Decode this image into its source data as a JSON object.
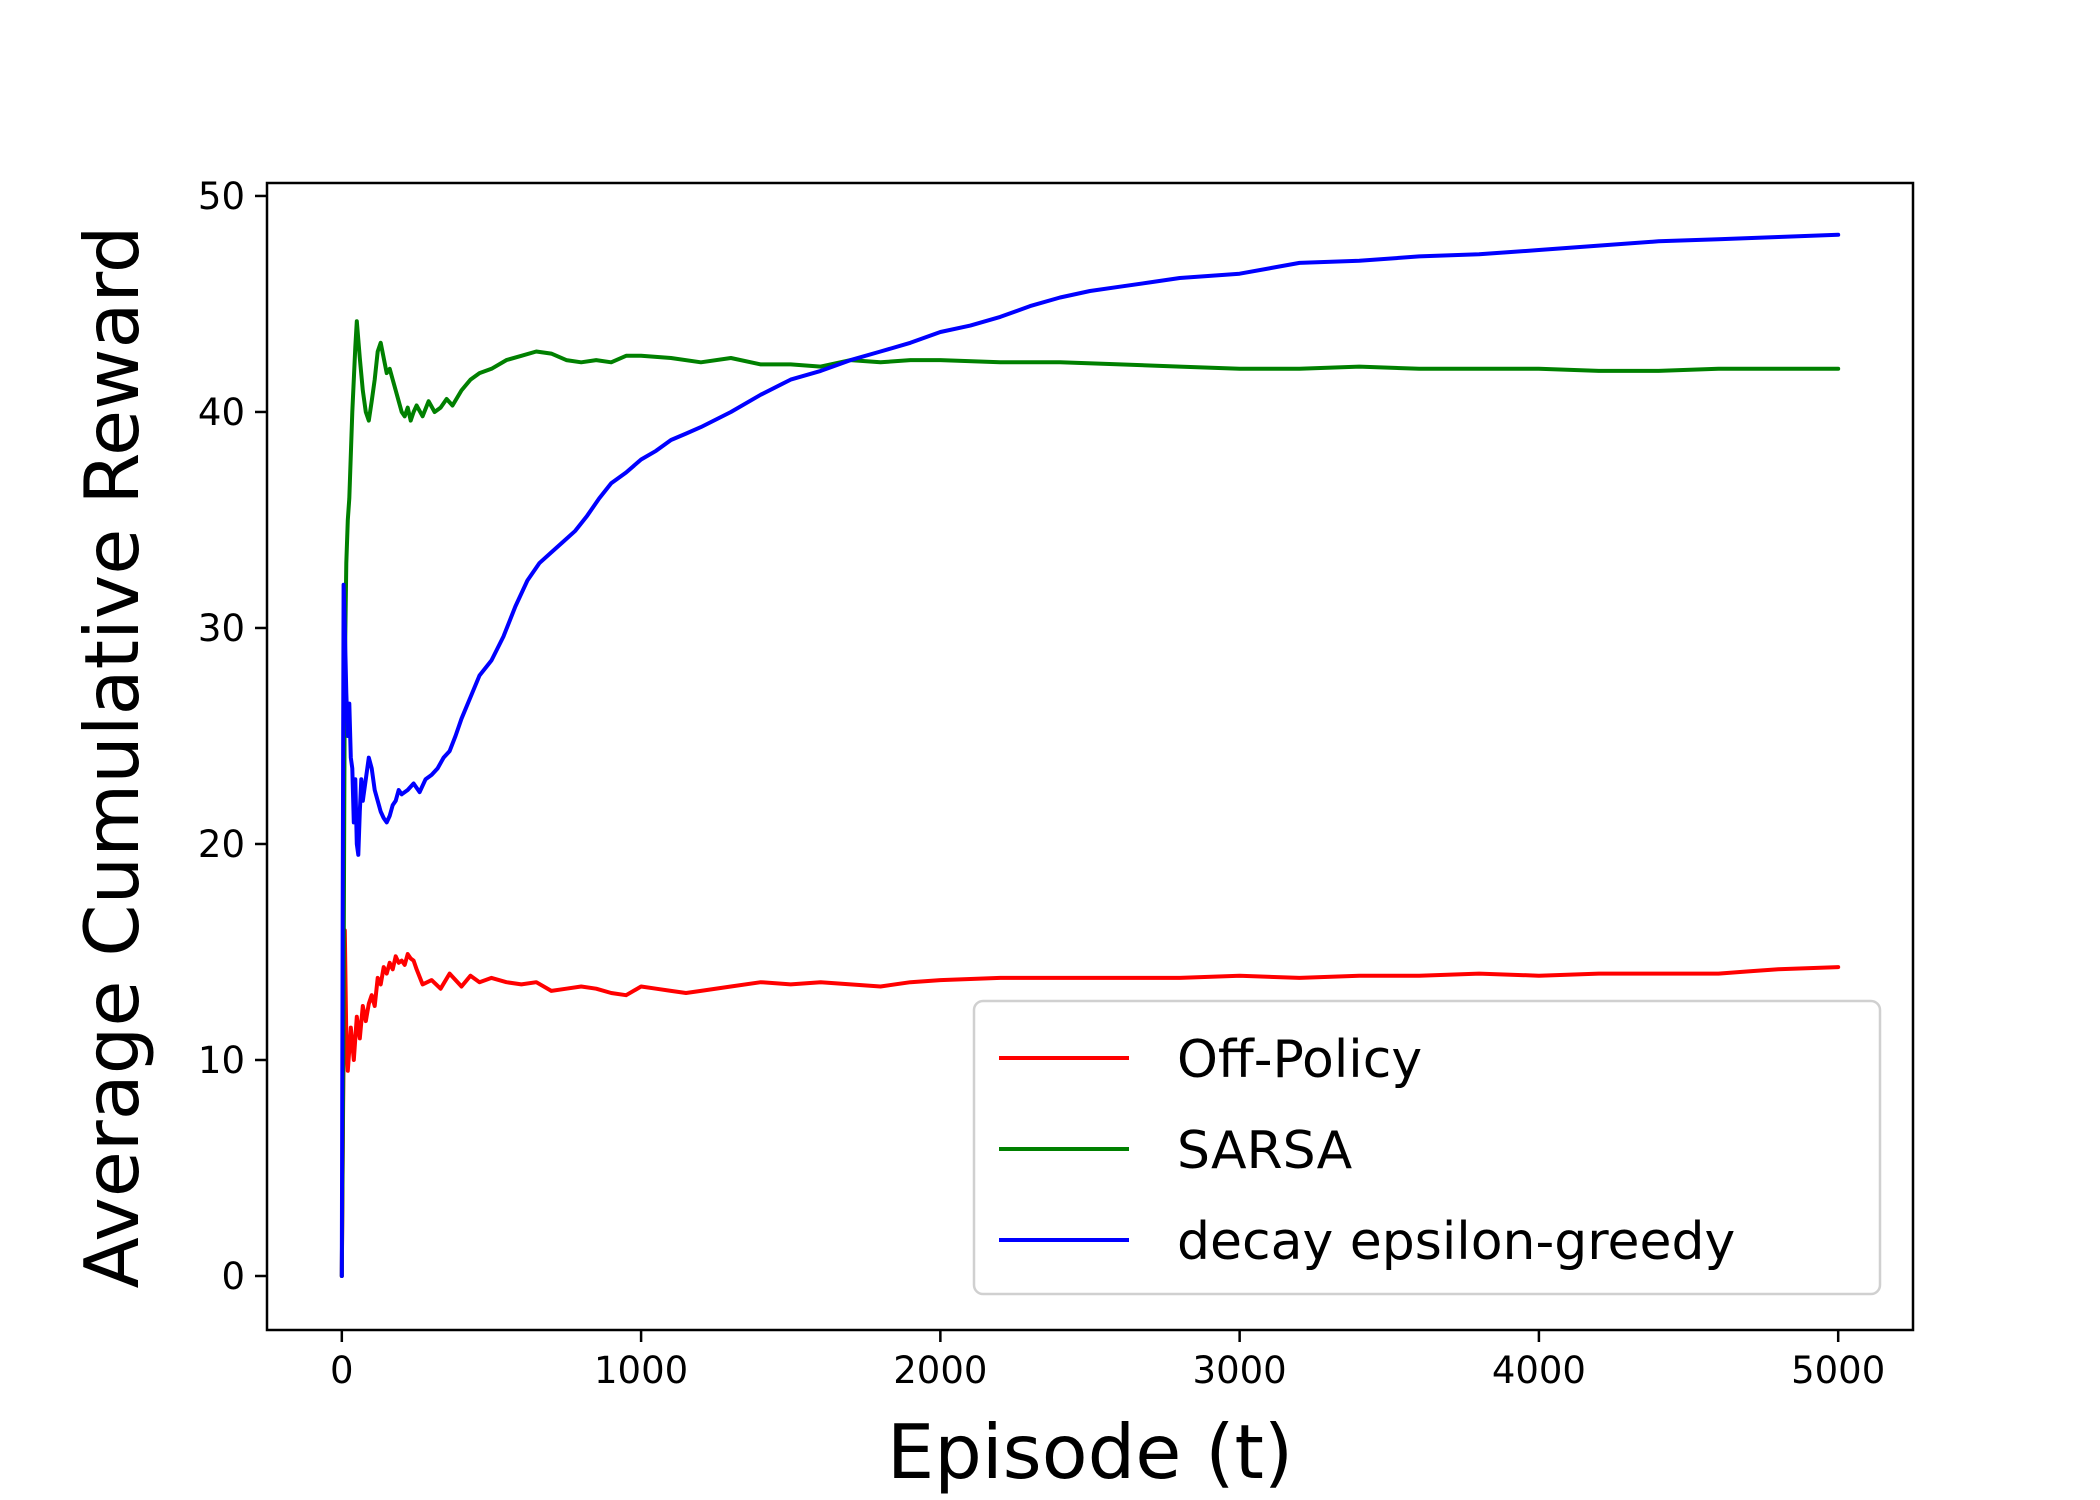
{
  "chart_data": {
    "type": "line",
    "title": "",
    "xlabel": "Episode (t)",
    "ylabel": "Average Cumulative Reward",
    "xlim": [
      -250,
      5250
    ],
    "ylim": [
      -2.5,
      50.6
    ],
    "xticks": [
      0,
      1000,
      2000,
      3000,
      4000,
      5000
    ],
    "yticks": [
      0,
      10,
      20,
      30,
      40,
      50
    ],
    "grid": false,
    "legend_position": "lower-right",
    "series": [
      {
        "name": "Off-Policy",
        "color": "#ff0000",
        "x": [
          0,
          5,
          10,
          15,
          20,
          25,
          30,
          40,
          50,
          60,
          70,
          80,
          90,
          100,
          110,
          120,
          130,
          140,
          150,
          160,
          170,
          180,
          190,
          200,
          210,
          220,
          230,
          240,
          250,
          270,
          300,
          330,
          360,
          400,
          430,
          460,
          500,
          550,
          600,
          650,
          700,
          750,
          800,
          850,
          900,
          950,
          1000,
          1050,
          1100,
          1150,
          1200,
          1300,
          1400,
          1500,
          1600,
          1700,
          1800,
          1900,
          2000,
          2200,
          2400,
          2600,
          2800,
          3000,
          3200,
          3400,
          3600,
          3800,
          4000,
          4200,
          4400,
          4600,
          4700,
          4800,
          5000
        ],
        "y": [
          0,
          9.0,
          16.0,
          11.0,
          9.5,
          10.5,
          11.5,
          10.0,
          12.0,
          11.0,
          12.5,
          11.8,
          12.6,
          13.0,
          12.5,
          13.8,
          13.5,
          14.3,
          14.0,
          14.5,
          14.2,
          14.8,
          14.5,
          14.6,
          14.4,
          14.9,
          14.7,
          14.6,
          14.2,
          13.5,
          13.7,
          13.3,
          14.0,
          13.4,
          13.9,
          13.6,
          13.8,
          13.6,
          13.5,
          13.6,
          13.2,
          13.3,
          13.4,
          13.3,
          13.1,
          13.0,
          13.4,
          13.3,
          13.2,
          13.1,
          13.2,
          13.4,
          13.6,
          13.5,
          13.6,
          13.5,
          13.4,
          13.6,
          13.7,
          13.8,
          13.8,
          13.8,
          13.8,
          13.9,
          13.8,
          13.9,
          13.9,
          14.0,
          13.9,
          14.0,
          14.0,
          14.0,
          14.1,
          14.2,
          14.3
        ]
      },
      {
        "name": "SARSA",
        "color": "#008000",
        "x": [
          0,
          5,
          10,
          15,
          20,
          25,
          30,
          35,
          40,
          45,
          50,
          60,
          70,
          80,
          90,
          100,
          110,
          120,
          130,
          140,
          150,
          160,
          170,
          180,
          190,
          200,
          210,
          220,
          230,
          240,
          250,
          270,
          290,
          310,
          330,
          350,
          370,
          400,
          430,
          460,
          500,
          550,
          600,
          650,
          700,
          750,
          800,
          850,
          900,
          950,
          1000,
          1100,
          1200,
          1300,
          1400,
          1500,
          1600,
          1700,
          1800,
          1900,
          2000,
          2200,
          2400,
          2600,
          2800,
          3000,
          3200,
          3400,
          3600,
          3800,
          4000,
          4200,
          4400,
          4600,
          4800,
          5000
        ],
        "y": [
          0,
          10.0,
          28.0,
          33.0,
          35.0,
          36.0,
          38.0,
          40.0,
          41.5,
          43.0,
          44.2,
          42.5,
          41.0,
          40.0,
          39.6,
          40.5,
          41.5,
          42.8,
          43.2,
          42.5,
          41.8,
          42.0,
          41.5,
          41.0,
          40.5,
          40.0,
          39.8,
          40.2,
          39.6,
          40.0,
          40.3,
          39.8,
          40.5,
          40.0,
          40.2,
          40.6,
          40.3,
          41.0,
          41.5,
          41.8,
          42.0,
          42.4,
          42.6,
          42.8,
          42.7,
          42.4,
          42.3,
          42.4,
          42.3,
          42.6,
          42.6,
          42.5,
          42.3,
          42.5,
          42.2,
          42.2,
          42.1,
          42.4,
          42.3,
          42.4,
          42.4,
          42.3,
          42.3,
          42.2,
          42.1,
          42.0,
          42.0,
          42.1,
          42.0,
          42.0,
          42.0,
          41.9,
          41.9,
          42.0,
          42.0,
          42.0
        ]
      },
      {
        "name": "decay epsilon-greedy",
        "color": "#0000ff",
        "x": [
          0,
          3,
          6,
          10,
          15,
          20,
          25,
          30,
          35,
          40,
          45,
          50,
          55,
          60,
          65,
          70,
          80,
          90,
          100,
          110,
          120,
          130,
          140,
          150,
          160,
          170,
          180,
          190,
          200,
          220,
          240,
          260,
          280,
          300,
          320,
          340,
          360,
          380,
          400,
          430,
          460,
          500,
          540,
          580,
          620,
          660,
          700,
          740,
          780,
          820,
          860,
          900,
          950,
          1000,
          1050,
          1100,
          1150,
          1200,
          1300,
          1400,
          1500,
          1600,
          1700,
          1800,
          1900,
          2000,
          2100,
          2200,
          2300,
          2400,
          2500,
          2600,
          2700,
          2800,
          2900,
          3000,
          3200,
          3400,
          3600,
          3800,
          4000,
          4200,
          4400,
          4600,
          4800,
          5000
        ],
        "y": [
          0,
          17.0,
          32.0,
          30.0,
          27.0,
          25.0,
          26.5,
          24.0,
          23.5,
          21.0,
          23.0,
          20.0,
          19.5,
          21.5,
          23.0,
          22.0,
          23.0,
          24.0,
          23.5,
          22.5,
          22.0,
          21.5,
          21.2,
          21.0,
          21.3,
          21.8,
          22.0,
          22.5,
          22.3,
          22.5,
          22.8,
          22.4,
          23.0,
          23.2,
          23.5,
          24.0,
          24.3,
          25.0,
          25.8,
          26.8,
          27.8,
          28.5,
          29.6,
          31.0,
          32.2,
          33.0,
          33.5,
          34.0,
          34.5,
          35.2,
          36.0,
          36.7,
          37.2,
          37.8,
          38.2,
          38.7,
          39.0,
          39.3,
          40.0,
          40.8,
          41.5,
          41.9,
          42.4,
          42.8,
          43.2,
          43.7,
          44.0,
          44.4,
          44.9,
          45.3,
          45.6,
          45.8,
          46.0,
          46.2,
          46.3,
          46.4,
          46.9,
          47.0,
          47.2,
          47.3,
          47.5,
          47.7,
          47.9,
          48.0,
          48.1,
          48.2
        ]
      }
    ]
  }
}
